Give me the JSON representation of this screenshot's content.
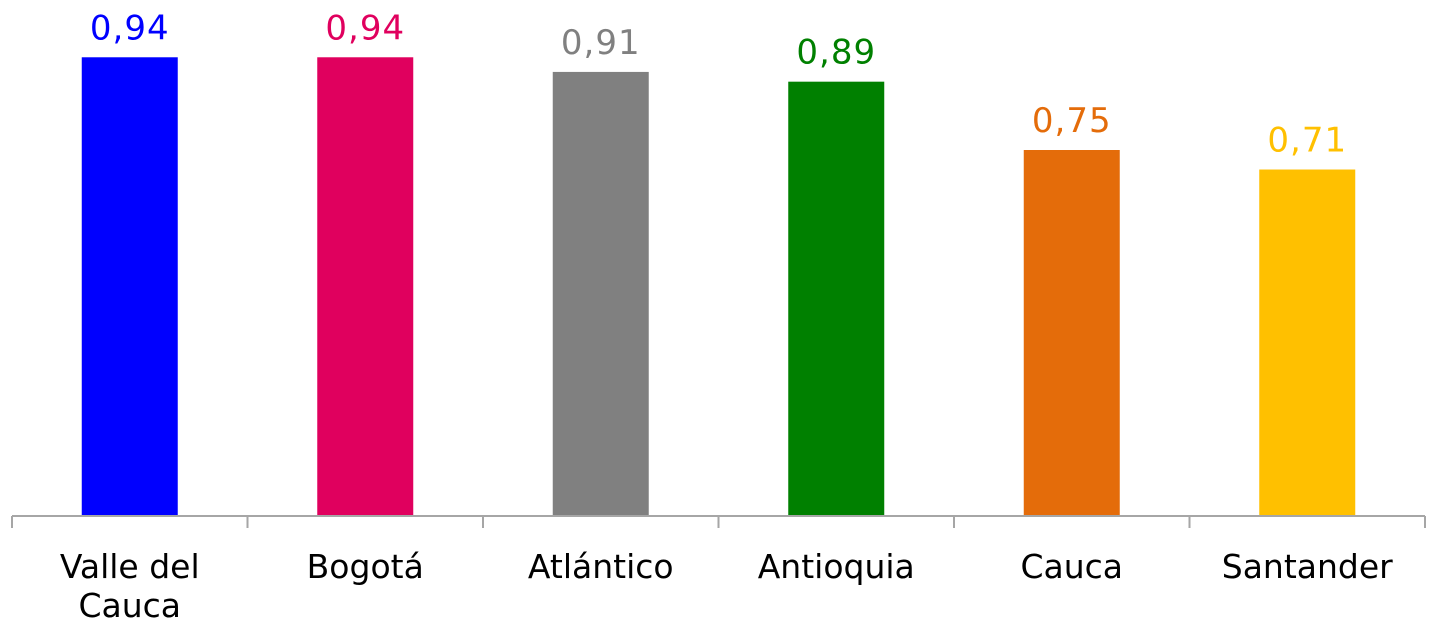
{
  "chart_data": {
    "type": "bar",
    "categories": [
      "Valle del Cauca",
      "Bogotá",
      "Atlántico",
      "Antioquia",
      "Cauca",
      "Santander"
    ],
    "category_label_lines": [
      [
        "Valle del",
        "Cauca"
      ],
      [
        "Bogotá"
      ],
      [
        "Atlántico"
      ],
      [
        "Antioquia"
      ],
      [
        "Cauca"
      ],
      [
        "Santander"
      ]
    ],
    "values": [
      0.94,
      0.94,
      0.91,
      0.89,
      0.75,
      0.71
    ],
    "value_labels": [
      "0,94",
      "0,94",
      "0,91",
      "0,89",
      "0,75",
      "0,71"
    ],
    "colors": [
      "#0000ff",
      "#e0005e",
      "#808080",
      "#008000",
      "#e46c0a",
      "#ffc000"
    ],
    "title": "",
    "xlabel": "",
    "ylabel": "",
    "ylim": [
      0,
      1.0
    ],
    "grid": false,
    "legend": "none"
  }
}
